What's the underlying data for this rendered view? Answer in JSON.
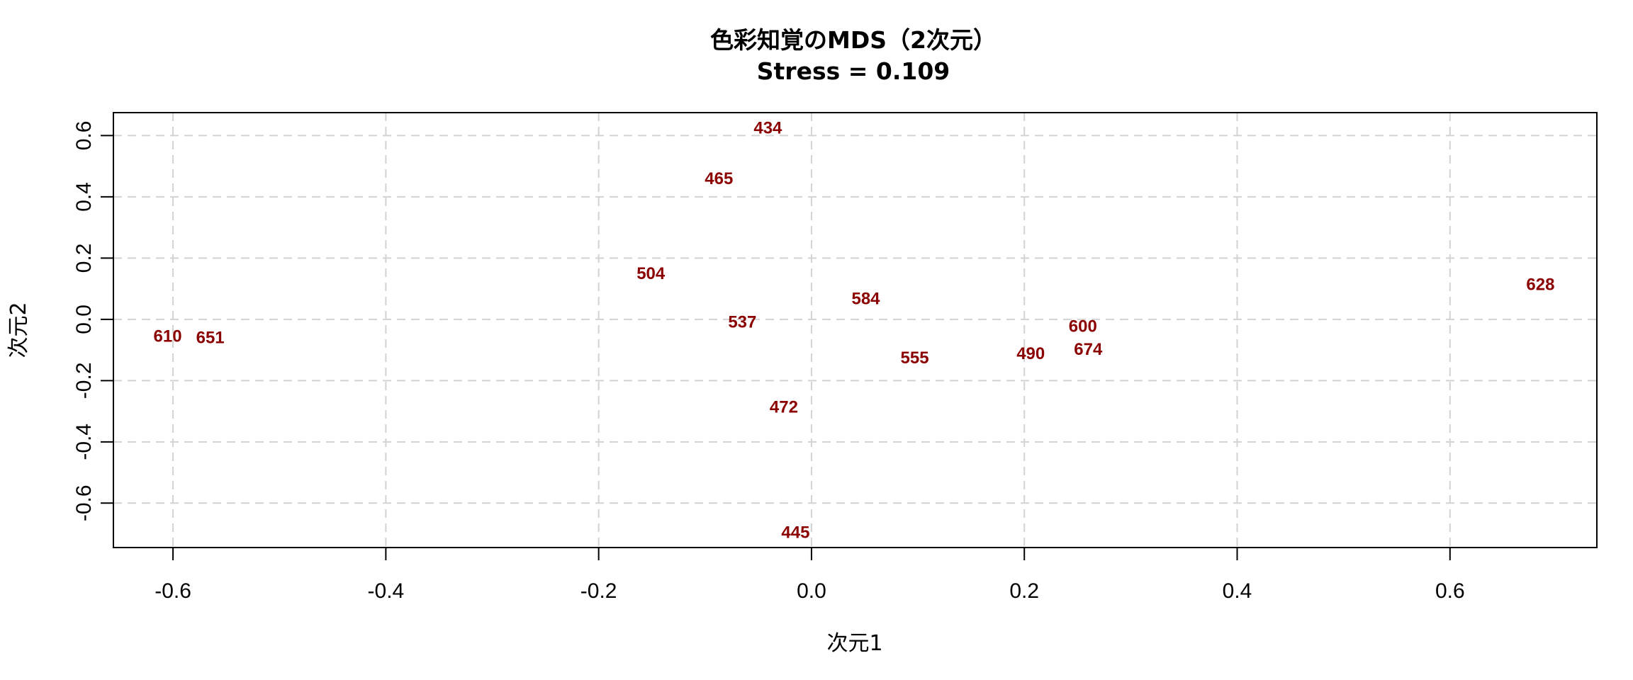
{
  "chart_data": {
    "type": "scatter",
    "title": "色彩知覚のMDS（2次元）",
    "subtitle": "Stress = 0.109",
    "xlabel": "次元1",
    "ylabel": "次元2",
    "xlim": [
      -0.656,
      0.738
    ],
    "ylim": [
      -0.745,
      0.675
    ],
    "x_ticks": [
      -0.6,
      -0.4,
      -0.2,
      0.0,
      0.2,
      0.4,
      0.6
    ],
    "x_tick_labels": [
      "-0.6",
      "-0.4",
      "-0.2",
      "0.0",
      "0.2",
      "0.4",
      "0.6"
    ],
    "y_ticks": [
      -0.6,
      -0.4,
      -0.2,
      0.0,
      0.2,
      0.4,
      0.6
    ],
    "y_tick_labels": [
      "-0.6",
      "-0.4",
      "-0.2",
      "0.0",
      "0.2",
      "0.4",
      "0.6"
    ],
    "grid": true,
    "point_color": "#8b0000",
    "points": [
      {
        "label": "434",
        "x": -0.041,
        "y": 0.624
      },
      {
        "label": "465",
        "x": -0.087,
        "y": 0.459
      },
      {
        "label": "504",
        "x": -0.151,
        "y": 0.149
      },
      {
        "label": "584",
        "x": 0.051,
        "y": 0.067
      },
      {
        "label": "628",
        "x": 0.685,
        "y": 0.113
      },
      {
        "label": "610",
        "x": -0.605,
        "y": -0.056
      },
      {
        "label": "651",
        "x": -0.565,
        "y": -0.061
      },
      {
        "label": "537",
        "x": -0.065,
        "y": -0.009
      },
      {
        "label": "600",
        "x": 0.255,
        "y": -0.024
      },
      {
        "label": "674",
        "x": 0.26,
        "y": -0.099
      },
      {
        "label": "490",
        "x": 0.206,
        "y": -0.112
      },
      {
        "label": "555",
        "x": 0.097,
        "y": -0.126
      },
      {
        "label": "472",
        "x": -0.026,
        "y": -0.287
      },
      {
        "label": "445",
        "x": -0.015,
        "y": -0.696
      }
    ]
  }
}
